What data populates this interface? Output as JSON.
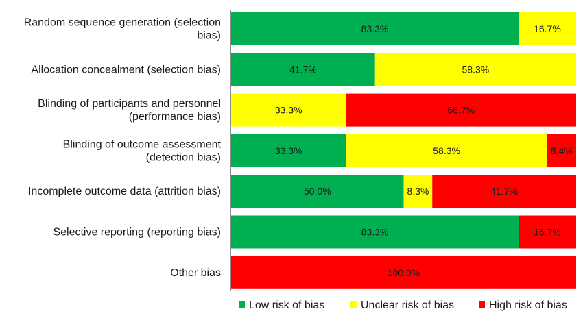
{
  "chart_data": {
    "type": "bar",
    "orientation": "horizontal",
    "stacked": true,
    "categories": [
      [
        "Random sequence generation (selection",
        "bias)"
      ],
      [
        "Allocation concealment (selection bias)"
      ],
      [
        "Blinding of participants and personnel",
        "(performance bias)"
      ],
      [
        "Blinding of outcome assessment",
        "(detection bias)"
      ],
      [
        "Incomplete outcome data (attrition bias)"
      ],
      [
        "Selective reporting (reporting bias)"
      ],
      [
        "Other bias"
      ]
    ],
    "series": [
      {
        "name": "Low risk of bias",
        "color": "#00b050",
        "values": [
          83.3,
          41.7,
          0,
          33.3,
          50.0,
          83.3,
          0
        ],
        "labels": [
          "83.3%",
          "41.7%",
          "",
          "33.3%",
          "50.0%",
          "83.3%",
          ""
        ]
      },
      {
        "name": "Unclear risk of bias",
        "color": "#ffff00",
        "values": [
          16.7,
          58.3,
          33.3,
          58.3,
          8.3,
          0,
          0
        ],
        "labels": [
          "16.7%",
          "58.3%",
          "33.3%",
          "58.3%",
          "8.3%",
          "",
          ""
        ]
      },
      {
        "name": "High risk of bias",
        "color": "#ff0000",
        "values": [
          0,
          0,
          66.7,
          8.4,
          41.7,
          16.7,
          100.0
        ],
        "labels": [
          "",
          "",
          "66.7%",
          "8.4%",
          "41.7%",
          "16.7%",
          "100.0%"
        ]
      }
    ],
    "xlim": [
      0,
      100
    ],
    "grid": false,
    "legend": "bottom"
  }
}
